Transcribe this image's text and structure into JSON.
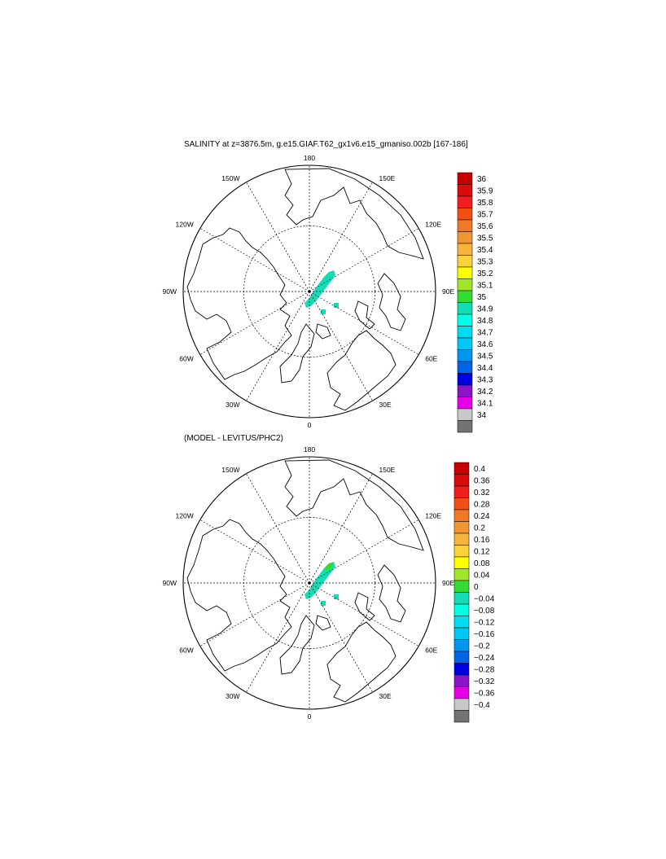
{
  "panels": [
    {
      "id": "top",
      "title": "SALINITY at z=3876.5m, g.e15.GIAF.T62_gx1v6.e15_gmaniso.002b [167-186]",
      "lon_labels": {
        "top": "180",
        "bottom": "0",
        "left_90": "90W",
        "right_90": "90E",
        "upper_left_150": "150W",
        "upper_right_150": "150E",
        "upper_left_120": "120W",
        "upper_right_120": "120E",
        "lower_left_60": "60W",
        "lower_right_60": "60E",
        "lower_left_30": "30W",
        "lower_right_30": "30E"
      },
      "colorbar": {
        "labels": [
          "36",
          "35.9",
          "35.8",
          "35.7",
          "35.6",
          "35.5",
          "35.4",
          "35.3",
          "35.2",
          "35.1",
          "35",
          "34.9",
          "34.8",
          "34.7",
          "34.6",
          "34.5",
          "34.4",
          "34.3",
          "34.2",
          "34.1",
          "34"
        ],
        "colors": [
          "#c80000",
          "#dc0a0a",
          "#f01e1e",
          "#f05014",
          "#f07828",
          "#f09632",
          "#f5b43c",
          "#fad23c",
          "#ffff00",
          "#a0e628",
          "#32dc32",
          "#14dcb4",
          "#00ffe6",
          "#00dcf0",
          "#00c8f5",
          "#0096f0",
          "#0064e6",
          "#0000e6",
          "#8c14c8",
          "#e600e6",
          "#c8c8c8",
          "#737373"
        ],
        "value_range": [
          34,
          36
        ]
      }
    },
    {
      "id": "bottom",
      "title": "(MODEL - LEVITUS/PHC2)",
      "lon_labels": {
        "top": "180",
        "bottom": "0",
        "left_90": "90W",
        "right_90": "90E",
        "upper_left_150": "150W",
        "upper_right_150": "150E",
        "upper_left_120": "120W",
        "upper_right_120": "120E",
        "lower_left_60": "60W",
        "lower_right_60": "60E",
        "lower_left_30": "30W",
        "lower_right_30": "30E"
      },
      "colorbar": {
        "labels": [
          "0.4",
          "0.36",
          "0.32",
          "0.28",
          "0.24",
          "0.2",
          "0.16",
          "0.12",
          "0.08",
          "0.04",
          "0",
          "−0.04",
          "−0.08",
          "−0.12",
          "−0.16",
          "−0.2",
          "−0.24",
          "−0.28",
          "−0.32",
          "−0.36",
          "−0.4"
        ],
        "colors": [
          "#c80000",
          "#dc0a0a",
          "#f01e1e",
          "#f05014",
          "#f07828",
          "#f09632",
          "#f5b43c",
          "#fad23c",
          "#ffff00",
          "#a0e628",
          "#32dc32",
          "#14dcb4",
          "#00ffe6",
          "#00dcf0",
          "#00c8f5",
          "#0096f0",
          "#0064e6",
          "#0000e6",
          "#8c14c8",
          "#e600e6",
          "#c8c8c8",
          "#737373"
        ],
        "value_range": [
          -0.4,
          0.4
        ]
      }
    }
  ],
  "field_color": "#14dcb4",
  "field_color_positive": "#32dc32"
}
